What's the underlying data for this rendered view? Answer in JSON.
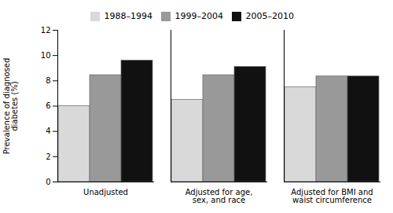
{
  "chart_data": {
    "type": "bar",
    "categories": [
      "Unadjusted",
      "Adjusted for age,\nsex, and race",
      "Adjusted for BMI and\nwaist circumference"
    ],
    "series": [
      {
        "name": "1988–1994",
        "color": "#d9d9d9",
        "values": [
          6.0,
          6.5,
          7.5
        ]
      },
      {
        "name": "1999–2004",
        "color": "#999999",
        "values": [
          8.45,
          8.45,
          8.35
        ]
      },
      {
        "name": "2005–2010",
        "color": "#111111",
        "values": [
          9.6,
          9.1,
          8.35
        ]
      }
    ],
    "ylabel": "Prevalence of diagnosed\ndiabetes (%)",
    "ylim": [
      0,
      12
    ],
    "yticks": [
      0,
      2,
      4,
      6,
      8,
      10,
      12
    ],
    "legend": "top"
  }
}
